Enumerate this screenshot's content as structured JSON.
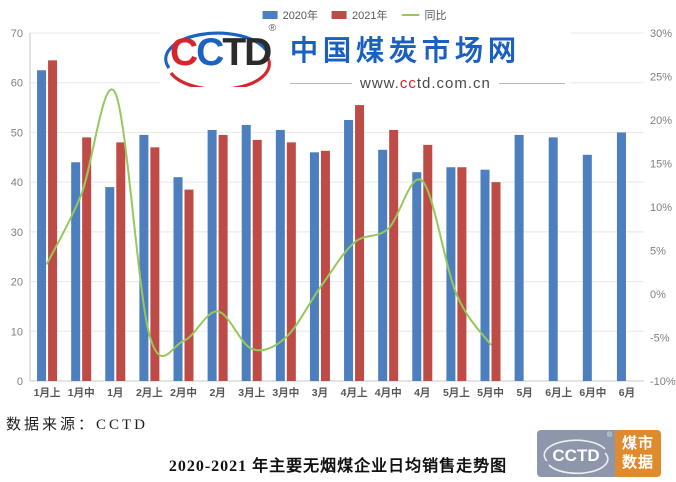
{
  "header": {
    "logo": {
      "letters": [
        {
          "ch": "C",
          "color": "#d6252b"
        },
        {
          "ch": "C",
          "color": "#1a63c0"
        },
        {
          "ch": "T",
          "color": "#2b2b2b"
        },
        {
          "ch": "D",
          "color": "#2b2b2b"
        }
      ],
      "registered_mark": "®",
      "arc_blue": "#1a63c0",
      "arc_red": "#d6252b"
    },
    "site_name": "中国煤炭市场网",
    "site_url": {
      "prefix": "www.",
      "cc": "cc",
      "rest": "td.com.cn"
    }
  },
  "legend": [
    {
      "label": "2020年",
      "color": "#4d7ebd",
      "marker": "square"
    },
    {
      "label": "2021年",
      "color": "#bf4b47",
      "marker": "square"
    },
    {
      "label": "同比",
      "color": "#95c95c",
      "marker": "line"
    }
  ],
  "chart_data": {
    "type": "bar",
    "title": "2020-2021 年主要无烟煤企业日均销售走势图",
    "categories": [
      "1月上",
      "1月中",
      "1月",
      "2月上",
      "2月中",
      "2月",
      "3月上",
      "3月中",
      "3月",
      "4月上",
      "4月中",
      "4月",
      "5月上",
      "5月中",
      "5月",
      "6月上",
      "6月中",
      "6月"
    ],
    "series": [
      {
        "name": "2020年",
        "type": "bar",
        "axis": "left",
        "color": "#4d7ebd",
        "values": [
          62.5,
          44,
          39,
          49.5,
          41,
          50.5,
          51.5,
          50.5,
          46,
          52.5,
          46.5,
          42,
          43,
          42.5,
          49.5,
          49,
          45.5,
          50
        ]
      },
      {
        "name": "2021年",
        "type": "bar",
        "axis": "left",
        "color": "#bf4b47",
        "values": [
          64.5,
          49,
          48,
          47,
          38.5,
          49.5,
          48.5,
          48,
          46.3,
          55.5,
          50.5,
          47.5,
          43,
          40,
          null,
          null,
          null,
          null
        ]
      },
      {
        "name": "同比",
        "type": "line",
        "axis": "right",
        "color": "#95c95c",
        "values": [
          3.5,
          11.4,
          23.1,
          -4.7,
          -5.4,
          -2.0,
          -6.3,
          -5.0,
          0.7,
          5.9,
          7.5,
          13.0,
          0.0,
          -5.8,
          null,
          null,
          null,
          null
        ]
      }
    ],
    "left_axis": {
      "min": 0,
      "max": 70,
      "step": 10,
      "tick_labels": [
        "0",
        "10",
        "20",
        "30",
        "40",
        "50",
        "60",
        "70"
      ]
    },
    "right_axis": {
      "min": -10,
      "max": 30,
      "step": 5,
      "tick_labels": [
        "-10%",
        "-5%",
        "0%",
        "5%",
        "10%",
        "15%",
        "20%",
        "25%",
        "30%"
      ]
    },
    "grid": true,
    "legend_position": "top-center"
  },
  "style": {
    "grid_color": "#e8e8e8",
    "axis_color": "#c9c9c9",
    "tick_color": "#7f7f7f",
    "cat_color": "#555555"
  },
  "footer": {
    "source": "数据来源：CCTD"
  },
  "badge": {
    "cctd": "CCTD",
    "registered_mark": "®",
    "line1": "煤市",
    "line2": "数据",
    "left_color": "#8d96aa",
    "right_color": "#df8b2d"
  }
}
